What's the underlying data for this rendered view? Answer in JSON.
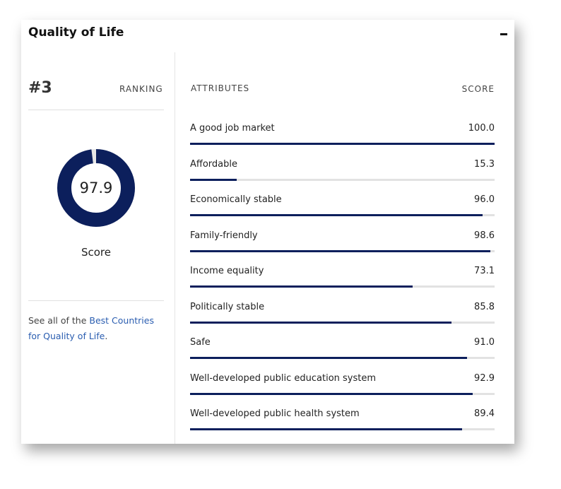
{
  "header": {
    "title": "Quality of Life"
  },
  "ranking": {
    "rank": "#3",
    "label": "RANKING"
  },
  "overall": {
    "value": 97.9,
    "label": "Score",
    "lim": [
      0,
      100
    ]
  },
  "footer": {
    "text": "See all of the",
    "link": "Best Countries for Quality of Life",
    "end": "."
  },
  "attributes": {
    "header": "ATTRIBUTES",
    "score_header": "SCORE",
    "xlim": [
      0,
      100
    ],
    "labels": [
      "A good job market",
      "Affordable",
      "Economically stable",
      "Family-friendly",
      "Income equality",
      "Politically stable",
      "Safe",
      "Well-developed public education system",
      "Well-developed public health system"
    ],
    "values": [
      100,
      15.3,
      96,
      98.6,
      73.1,
      85.8,
      91,
      92.9,
      89.4
    ],
    "value_labels": [
      "100.0",
      "15.3",
      "96.0",
      "98.6",
      "73.1",
      "85.8",
      "91.0",
      "92.9",
      "89.4"
    ]
  }
}
